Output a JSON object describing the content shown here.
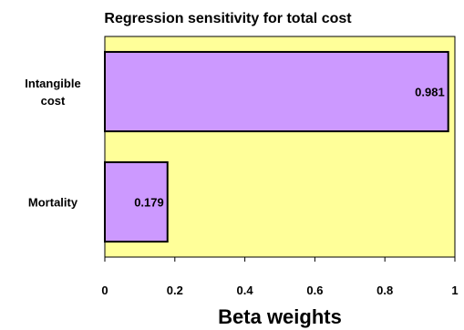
{
  "chart_data": {
    "type": "bar",
    "orientation": "horizontal",
    "title": "Regression sensitivity for total cost",
    "xlabel": "Beta weights",
    "ylabel": "",
    "categories": [
      [
        "Intangible",
        "cost"
      ],
      [
        "Mortality"
      ]
    ],
    "values": [
      0.981,
      0.179
    ],
    "data_labels": [
      "0.981",
      "0.179"
    ],
    "xlim": [
      0,
      1
    ],
    "xticks": [
      0,
      0.2,
      0.4,
      0.6,
      0.8,
      1
    ],
    "xtick_labels": [
      "0",
      "0.2",
      "0.4",
      "0.6",
      "0.8",
      "1"
    ],
    "grid": false,
    "legend": "none",
    "colors": {
      "plot_background": "#ffff99",
      "bar_fill": "#cc99ff",
      "bar_stroke": "#000000",
      "axis": "#000000"
    }
  }
}
